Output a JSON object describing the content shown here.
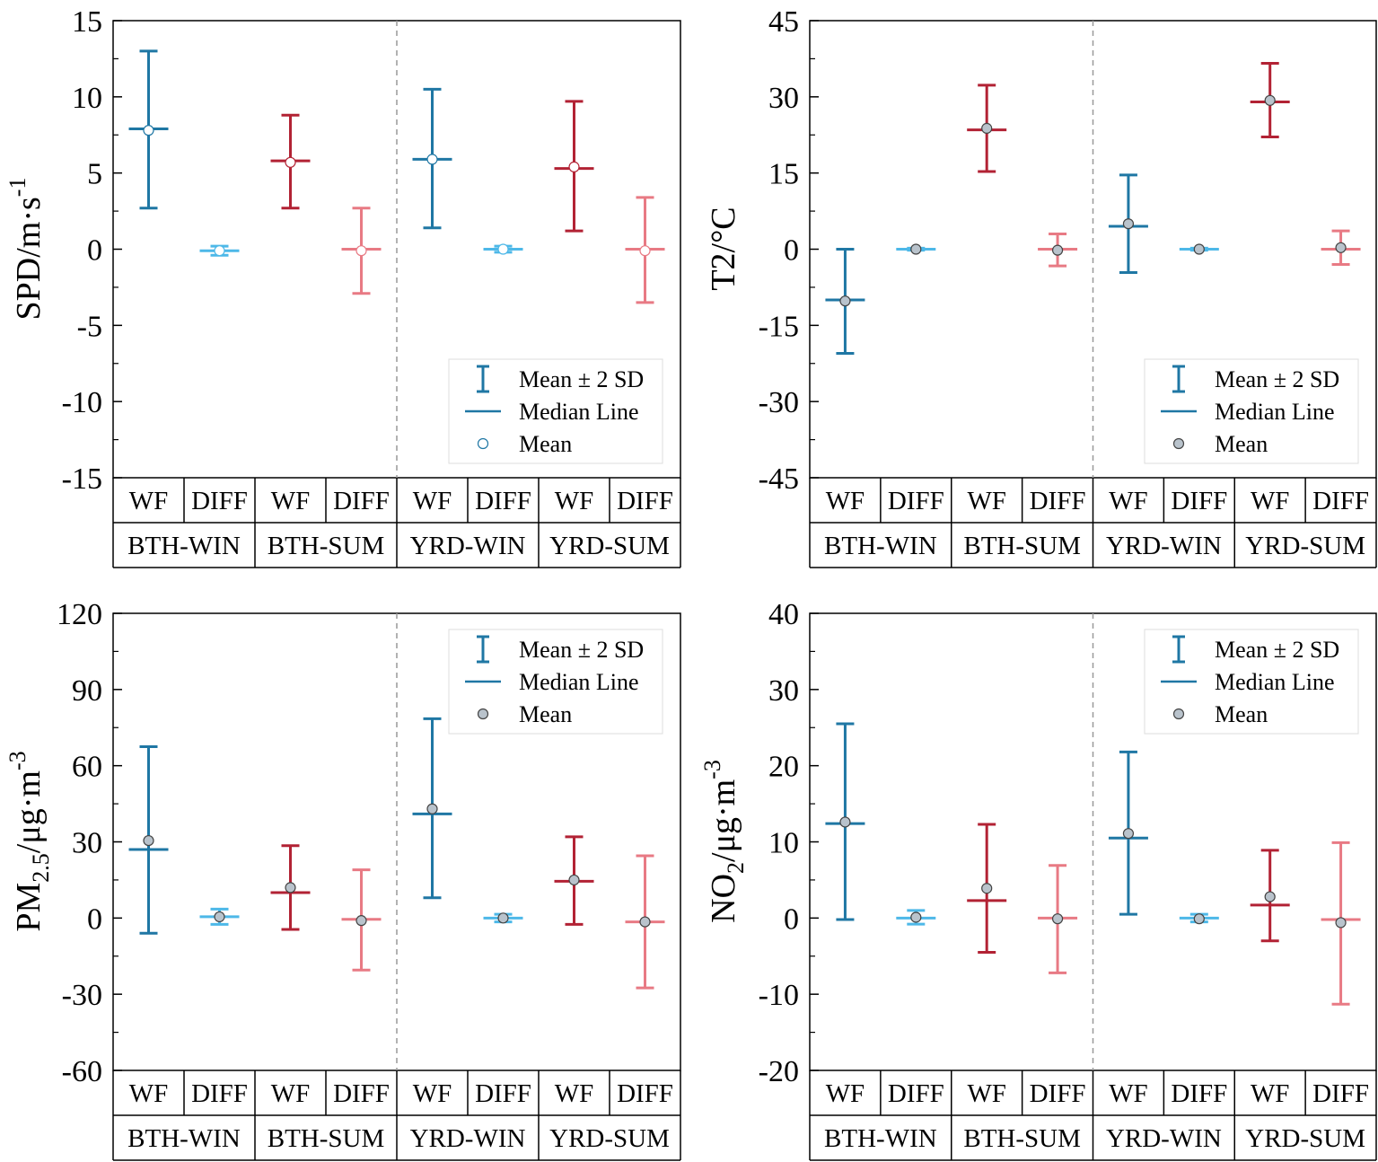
{
  "figure": {
    "description_free": true
  },
  "colors": {
    "win_wf": "#1f77a4",
    "win_diff": "#4db8e8",
    "sum_wf": "#b22234",
    "sum_diff": "#e87a84",
    "mean_fill_gray": "#b9c3cc",
    "mean_fill_white": "#ffffff",
    "separator": "#999999",
    "axis": "#000000"
  },
  "legend": {
    "errorbar_label": "Mean ± 2 SD",
    "median_label": "Median Line",
    "mean_label": "Mean"
  },
  "categories": {
    "sub": [
      "WF",
      "DIFF",
      "WF",
      "DIFF",
      "WF",
      "DIFF",
      "WF",
      "DIFF"
    ],
    "groups": [
      "BTH-WIN",
      "BTH-SUM",
      "YRD-WIN",
      "YRD-SUM"
    ]
  },
  "chart_data": [
    {
      "type": "errorbar",
      "ylabel_main": "SPD/m·s",
      "ylabel_sup": "-1",
      "ylim": [
        -15,
        15
      ],
      "yticks": [
        "15",
        "10",
        "5",
        "0",
        "-5",
        "-10",
        "-15"
      ],
      "legend_position": "bottom-right",
      "mean_marker": "white",
      "points": [
        {
          "group": "BTH-WIN",
          "cat": "WF",
          "mean": 7.8,
          "median": 7.9,
          "low": 2.7,
          "high": 13.0
        },
        {
          "group": "BTH-WIN",
          "cat": "DIFF",
          "mean": -0.1,
          "median": -0.1,
          "low": -0.4,
          "high": 0.2
        },
        {
          "group": "BTH-SUM",
          "cat": "WF",
          "mean": 5.7,
          "median": 5.8,
          "low": 2.7,
          "high": 8.8
        },
        {
          "group": "BTH-SUM",
          "cat": "DIFF",
          "mean": -0.1,
          "median": 0.0,
          "low": -2.9,
          "high": 2.7
        },
        {
          "group": "YRD-WIN",
          "cat": "WF",
          "mean": 5.9,
          "median": 5.9,
          "low": 1.4,
          "high": 10.5
        },
        {
          "group": "YRD-WIN",
          "cat": "DIFF",
          "mean": 0.0,
          "median": 0.0,
          "low": -0.2,
          "high": 0.2
        },
        {
          "group": "YRD-SUM",
          "cat": "WF",
          "mean": 5.4,
          "median": 5.3,
          "low": 1.2,
          "high": 9.7
        },
        {
          "group": "YRD-SUM",
          "cat": "DIFF",
          "mean": -0.1,
          "median": 0.0,
          "low": -3.5,
          "high": 3.4
        }
      ]
    },
    {
      "type": "errorbar",
      "ylabel_main": "T2/°C",
      "ylabel_sup": "",
      "ylim": [
        -45,
        45
      ],
      "yticks": [
        "45",
        "30",
        "15",
        "0",
        "-15",
        "-30",
        "-45"
      ],
      "legend_position": "bottom-right",
      "mean_marker": "gray",
      "points": [
        {
          "group": "BTH-WIN",
          "cat": "WF",
          "mean": -10.2,
          "median": -10.0,
          "low": -20.5,
          "high": 0.0
        },
        {
          "group": "BTH-WIN",
          "cat": "DIFF",
          "mean": 0.0,
          "median": 0.0,
          "low": -0.2,
          "high": 0.2
        },
        {
          "group": "BTH-SUM",
          "cat": "WF",
          "mean": 23.8,
          "median": 23.5,
          "low": 15.3,
          "high": 32.3
        },
        {
          "group": "BTH-SUM",
          "cat": "DIFF",
          "mean": -0.2,
          "median": 0.0,
          "low": -3.3,
          "high": 3.0
        },
        {
          "group": "YRD-WIN",
          "cat": "WF",
          "mean": 5.0,
          "median": 4.5,
          "low": -4.6,
          "high": 14.6
        },
        {
          "group": "YRD-WIN",
          "cat": "DIFF",
          "mean": 0.0,
          "median": 0.0,
          "low": -0.2,
          "high": 0.2
        },
        {
          "group": "YRD-SUM",
          "cat": "WF",
          "mean": 29.3,
          "median": 29.0,
          "low": 22.1,
          "high": 36.6
        },
        {
          "group": "YRD-SUM",
          "cat": "DIFF",
          "mean": 0.3,
          "median": 0.0,
          "low": -3.0,
          "high": 3.6
        }
      ]
    },
    {
      "type": "errorbar",
      "ylabel_main": "PM",
      "ylabel_sub": "2.5",
      "ylabel_rest": "/μg·m",
      "ylabel_sup": "-3",
      "ylim": [
        -60,
        120
      ],
      "yticks": [
        "120",
        "90",
        "60",
        "30",
        "0",
        "-30",
        "-60"
      ],
      "legend_position": "top-right",
      "mean_marker": "gray",
      "points": [
        {
          "group": "BTH-WIN",
          "cat": "WF",
          "mean": 30.5,
          "median": 27.0,
          "low": -6.0,
          "high": 67.5
        },
        {
          "group": "BTH-WIN",
          "cat": "DIFF",
          "mean": 0.5,
          "median": 0.5,
          "low": -2.5,
          "high": 3.5
        },
        {
          "group": "BTH-SUM",
          "cat": "WF",
          "mean": 12.0,
          "median": 10.0,
          "low": -4.5,
          "high": 28.5
        },
        {
          "group": "BTH-SUM",
          "cat": "DIFF",
          "mean": -1.0,
          "median": -0.5,
          "low": -20.5,
          "high": 19.0
        },
        {
          "group": "YRD-WIN",
          "cat": "WF",
          "mean": 43.0,
          "median": 41.0,
          "low": 8.0,
          "high": 78.5
        },
        {
          "group": "YRD-WIN",
          "cat": "DIFF",
          "mean": 0.0,
          "median": 0.0,
          "low": -1.5,
          "high": 1.5
        },
        {
          "group": "YRD-SUM",
          "cat": "WF",
          "mean": 15.0,
          "median": 14.5,
          "low": -2.5,
          "high": 32.0
        },
        {
          "group": "YRD-SUM",
          "cat": "DIFF",
          "mean": -1.5,
          "median": -1.5,
          "low": -27.5,
          "high": 24.5
        }
      ]
    },
    {
      "type": "errorbar",
      "ylabel_main": "NO",
      "ylabel_sub": "2",
      "ylabel_rest": "/μg·m",
      "ylabel_sup": "-3",
      "ylim": [
        -20,
        40
      ],
      "yticks": [
        "40",
        "30",
        "20",
        "10",
        "0",
        "-10",
        "-20"
      ],
      "legend_position": "top-right",
      "mean_marker": "gray",
      "points": [
        {
          "group": "BTH-WIN",
          "cat": "WF",
          "mean": 12.6,
          "median": 12.4,
          "low": -0.2,
          "high": 25.5
        },
        {
          "group": "BTH-WIN",
          "cat": "DIFF",
          "mean": 0.1,
          "median": 0.0,
          "low": -0.8,
          "high": 1.0
        },
        {
          "group": "BTH-SUM",
          "cat": "WF",
          "mean": 3.9,
          "median": 2.3,
          "low": -4.5,
          "high": 12.3
        },
        {
          "group": "BTH-SUM",
          "cat": "DIFF",
          "mean": -0.1,
          "median": 0.0,
          "low": -7.2,
          "high": 6.9
        },
        {
          "group": "YRD-WIN",
          "cat": "WF",
          "mean": 11.1,
          "median": 10.5,
          "low": 0.5,
          "high": 21.8
        },
        {
          "group": "YRD-WIN",
          "cat": "DIFF",
          "mean": -0.1,
          "median": 0.0,
          "low": -0.5,
          "high": 0.5
        },
        {
          "group": "YRD-SUM",
          "cat": "WF",
          "mean": 2.8,
          "median": 1.7,
          "low": -3.0,
          "high": 8.9
        },
        {
          "group": "YRD-SUM",
          "cat": "DIFF",
          "mean": -0.6,
          "median": -0.2,
          "low": -11.3,
          "high": 9.9
        }
      ]
    }
  ]
}
